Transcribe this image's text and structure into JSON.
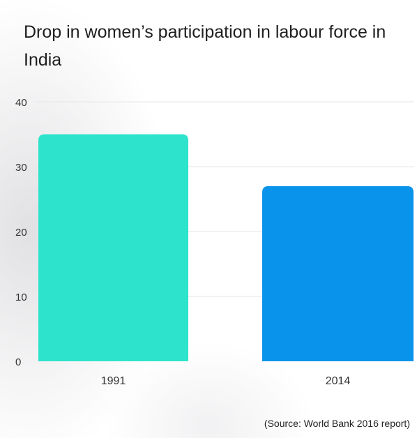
{
  "chart_data": {
    "type": "bar",
    "title": "Drop in women’s participation in labour force in India",
    "categories": [
      "1991",
      "2014"
    ],
    "values": [
      35,
      27
    ],
    "bar_colors": [
      "#2ee3cc",
      "#0a93ea"
    ],
    "ylim": [
      0,
      40
    ],
    "yticks": [
      0,
      10,
      20,
      30,
      40
    ],
    "xlabel": "",
    "ylabel": "",
    "grid": true,
    "legend": "none"
  },
  "source_note": "(Source: World Bank 2016 report)",
  "colors": {
    "gridline": "#e6e6e6",
    "tick_text": "#333333",
    "title_text": "#1f1f1f"
  }
}
